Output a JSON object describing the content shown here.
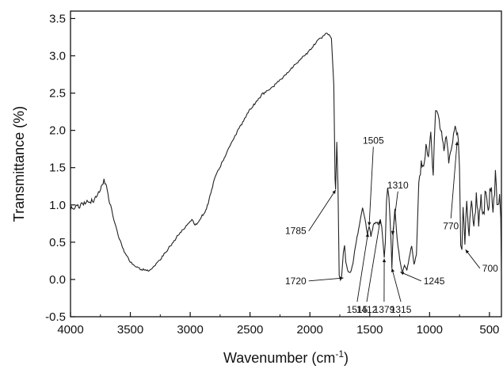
{
  "chart_data": {
    "type": "line",
    "title": "",
    "xlabel": "Wavenumber (cm",
    "xlabel_sup": "-1",
    "xlabel_suffix": ")",
    "ylabel": "Transmittance (%)",
    "xlim": [
      4000,
      400
    ],
    "x_reversed": true,
    "ylim": [
      -0.5,
      3.6
    ],
    "xticks": [
      4000,
      3500,
      3000,
      2500,
      2000,
      1500,
      1000,
      500
    ],
    "yticks": [
      -0.5,
      0.0,
      0.5,
      1.0,
      1.5,
      2.0,
      2.5,
      3.0,
      3.5
    ],
    "ytick_labels": [
      "-0.5",
      "0.0",
      "0.5",
      "1.0",
      "1.5",
      "2.0",
      "2.5",
      "3.0",
      "3.5"
    ],
    "grid": false,
    "series": [
      {
        "color": "#222222",
        "points": [
          [
            4000,
            0.96
          ],
          [
            3900,
            1.0
          ],
          [
            3800,
            1.07
          ],
          [
            3750,
            1.22
          ],
          [
            3720,
            1.33
          ],
          [
            3700,
            1.25
          ],
          [
            3680,
            1.1
          ],
          [
            3650,
            0.88
          ],
          [
            3600,
            0.58
          ],
          [
            3550,
            0.37
          ],
          [
            3500,
            0.24
          ],
          [
            3450,
            0.17
          ],
          [
            3400,
            0.13
          ],
          [
            3350,
            0.12
          ],
          [
            3300,
            0.17
          ],
          [
            3250,
            0.27
          ],
          [
            3200,
            0.38
          ],
          [
            3150,
            0.48
          ],
          [
            3100,
            0.6
          ],
          [
            3050,
            0.69
          ],
          [
            3000,
            0.78
          ],
          [
            2980,
            0.8
          ],
          [
            2960,
            0.72
          ],
          [
            2930,
            0.78
          ],
          [
            2900,
            0.86
          ],
          [
            2870,
            0.92
          ],
          [
            2850,
            1.02
          ],
          [
            2820,
            1.2
          ],
          [
            2800,
            1.35
          ],
          [
            2700,
            1.68
          ],
          [
            2600,
            2.0
          ],
          [
            2500,
            2.28
          ],
          [
            2400,
            2.48
          ],
          [
            2300,
            2.6
          ],
          [
            2200,
            2.75
          ],
          [
            2100,
            2.92
          ],
          [
            2000,
            3.07
          ],
          [
            1950,
            3.18
          ],
          [
            1900,
            3.25
          ],
          [
            1870,
            3.3
          ],
          [
            1840,
            3.28
          ],
          [
            1820,
            3.22
          ],
          [
            1800,
            2.6
          ],
          [
            1790,
            1.35
          ],
          [
            1785,
            1.2
          ],
          [
            1775,
            1.85
          ],
          [
            1765,
            1.25
          ],
          [
            1755,
            0.05
          ],
          [
            1745,
            0.0
          ],
          [
            1735,
            0.05
          ],
          [
            1720,
            0.38
          ],
          [
            1710,
            0.45
          ],
          [
            1700,
            0.22
          ],
          [
            1680,
            0.1
          ],
          [
            1660,
            0.09
          ],
          [
            1640,
            0.22
          ],
          [
            1620,
            0.45
          ],
          [
            1600,
            0.62
          ],
          [
            1580,
            0.8
          ],
          [
            1560,
            0.95
          ],
          [
            1540,
            0.82
          ],
          [
            1520,
            0.6
          ],
          [
            1505,
            0.72
          ],
          [
            1490,
            0.58
          ],
          [
            1470,
            0.72
          ],
          [
            1450,
            0.78
          ],
          [
            1430,
            0.74
          ],
          [
            1412,
            0.8
          ],
          [
            1400,
            0.7
          ],
          [
            1390,
            0.5
          ],
          [
            1379,
            0.28
          ],
          [
            1370,
            0.5
          ],
          [
            1360,
            1.05
          ],
          [
            1350,
            1.22
          ],
          [
            1340,
            1.1
          ],
          [
            1330,
            0.8
          ],
          [
            1320,
            0.42
          ],
          [
            1315,
            0.15
          ],
          [
            1305,
            0.6
          ],
          [
            1290,
            0.95
          ],
          [
            1270,
            0.52
          ],
          [
            1250,
            0.28
          ],
          [
            1230,
            0.1
          ],
          [
            1210,
            0.18
          ],
          [
            1190,
            0.12
          ],
          [
            1170,
            0.3
          ],
          [
            1150,
            0.45
          ],
          [
            1130,
            0.2
          ],
          [
            1110,
            0.35
          ],
          [
            1090,
            1.25
          ],
          [
            1070,
            1.55
          ],
          [
            1050,
            1.48
          ],
          [
            1030,
            1.8
          ],
          [
            1010,
            1.62
          ],
          [
            990,
            1.95
          ],
          [
            970,
            1.35
          ],
          [
            960,
            1.88
          ],
          [
            950,
            2.22
          ],
          [
            940,
            2.28
          ],
          [
            930,
            2.25
          ],
          [
            920,
            2.12
          ],
          [
            900,
            1.95
          ],
          [
            880,
            1.75
          ],
          [
            860,
            1.92
          ],
          [
            840,
            1.58
          ],
          [
            820,
            1.75
          ],
          [
            800,
            1.95
          ],
          [
            780,
            2.05
          ],
          [
            760,
            1.88
          ],
          [
            750,
            1.5
          ],
          [
            740,
            0.45
          ],
          [
            730,
            0.4
          ],
          [
            720,
            1.0
          ],
          [
            705,
            0.55
          ],
          [
            690,
            1.05
          ],
          [
            670,
            0.65
          ],
          [
            650,
            1.1
          ],
          [
            630,
            0.7
          ],
          [
            610,
            1.15
          ],
          [
            590,
            0.75
          ],
          [
            570,
            1.2
          ],
          [
            550,
            0.8
          ],
          [
            530,
            1.25
          ],
          [
            510,
            0.85
          ],
          [
            490,
            1.3
          ],
          [
            470,
            0.9
          ],
          [
            450,
            1.35
          ],
          [
            430,
            1.0
          ],
          [
            415,
            1.2
          ],
          [
            405,
            0.75
          ],
          [
            400,
            0.05
          ]
        ]
      }
    ],
    "annotations": [
      {
        "label": "1785",
        "peak_x": 1785,
        "peak_y": 1.2,
        "text_x": 2010,
        "text_y": 0.65
      },
      {
        "label": "1720",
        "peak_x": 1720,
        "peak_y": 0.02,
        "text_x": 2010,
        "text_y": -0.02
      },
      {
        "label": "1515",
        "peak_x": 1515,
        "peak_y": 0.62,
        "text_x": 1605,
        "text_y": -0.3
      },
      {
        "label": "1412",
        "peak_x": 1412,
        "peak_y": 0.8,
        "text_x": 1525,
        "text_y": -0.3
      },
      {
        "label": "1505",
        "peak_x": 1505,
        "peak_y": 0.72,
        "text_x": 1470,
        "text_y": 1.78
      },
      {
        "label": "1379",
        "peak_x": 1379,
        "peak_y": 0.28,
        "text_x": 1380,
        "text_y": -0.3
      },
      {
        "label": "1310",
        "peak_x": 1310,
        "peak_y": 0.6,
        "text_x": 1265,
        "text_y": 1.18
      },
      {
        "label": "1315",
        "peak_x": 1315,
        "peak_y": 0.15,
        "text_x": 1240,
        "text_y": -0.3
      },
      {
        "label": "1245",
        "peak_x": 1245,
        "peak_y": 0.1,
        "text_x": 1070,
        "text_y": -0.02
      },
      {
        "label": "770",
        "peak_x": 770,
        "peak_y": 1.85,
        "text_x": 822,
        "text_y": 0.82
      },
      {
        "label": "700",
        "peak_x": 700,
        "peak_y": 0.4,
        "text_x": 580,
        "text_y": 0.15
      }
    ]
  }
}
